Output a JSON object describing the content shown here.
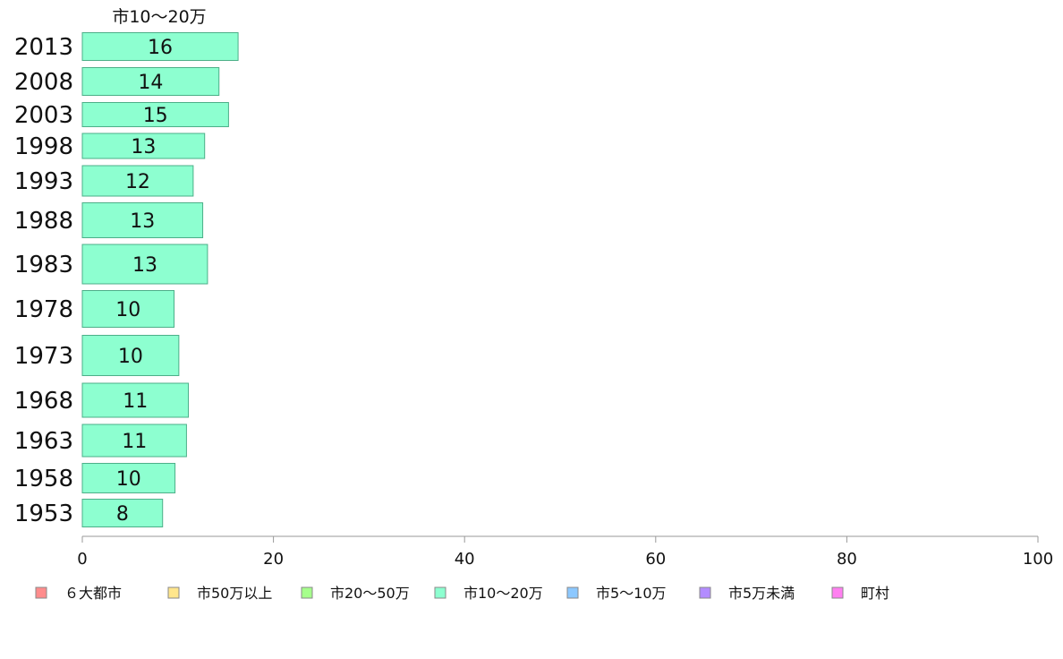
{
  "chart_data": {
    "type": "bar",
    "orientation": "horizontal",
    "series_title": "市10～20万",
    "categories": [
      "2013",
      "2008",
      "2003",
      "1998",
      "1993",
      "1988",
      "1983",
      "1978",
      "1973",
      "1968",
      "1963",
      "1958",
      "1953"
    ],
    "values": [
      16.3,
      14.3,
      15.3,
      12.8,
      11.6,
      12.6,
      13.1,
      9.6,
      10.1,
      11.1,
      10.9,
      9.7,
      8.4
    ],
    "value_labels": [
      "16",
      "14",
      "15",
      "13",
      "12",
      "13",
      "13",
      "10",
      "10",
      "11",
      "11",
      "10",
      "8"
    ],
    "xlim": [
      0,
      100
    ],
    "xticks": [
      0,
      20,
      40,
      60,
      80,
      100
    ],
    "xtick_labels": [
      "0",
      "20",
      "40",
      "60",
      "80",
      "100"
    ],
    "grid": false,
    "bar_color": "#8dffd0",
    "bar_stroke": "#4caf88",
    "legend_position": "bottom",
    "legend": [
      {
        "label": "６大都市",
        "color": "#ff8c8c"
      },
      {
        "label": "市50万以上",
        "color": "#ffe68c"
      },
      {
        "label": "市20～50万",
        "color": "#a6ff8c"
      },
      {
        "label": "市10～20万",
        "color": "#8dffd0"
      },
      {
        "label": "市5～10万",
        "color": "#8cc8ff"
      },
      {
        "label": "市5万未満",
        "color": "#b38cff"
      },
      {
        "label": "町村",
        "color": "#ff7ff0"
      }
    ]
  }
}
